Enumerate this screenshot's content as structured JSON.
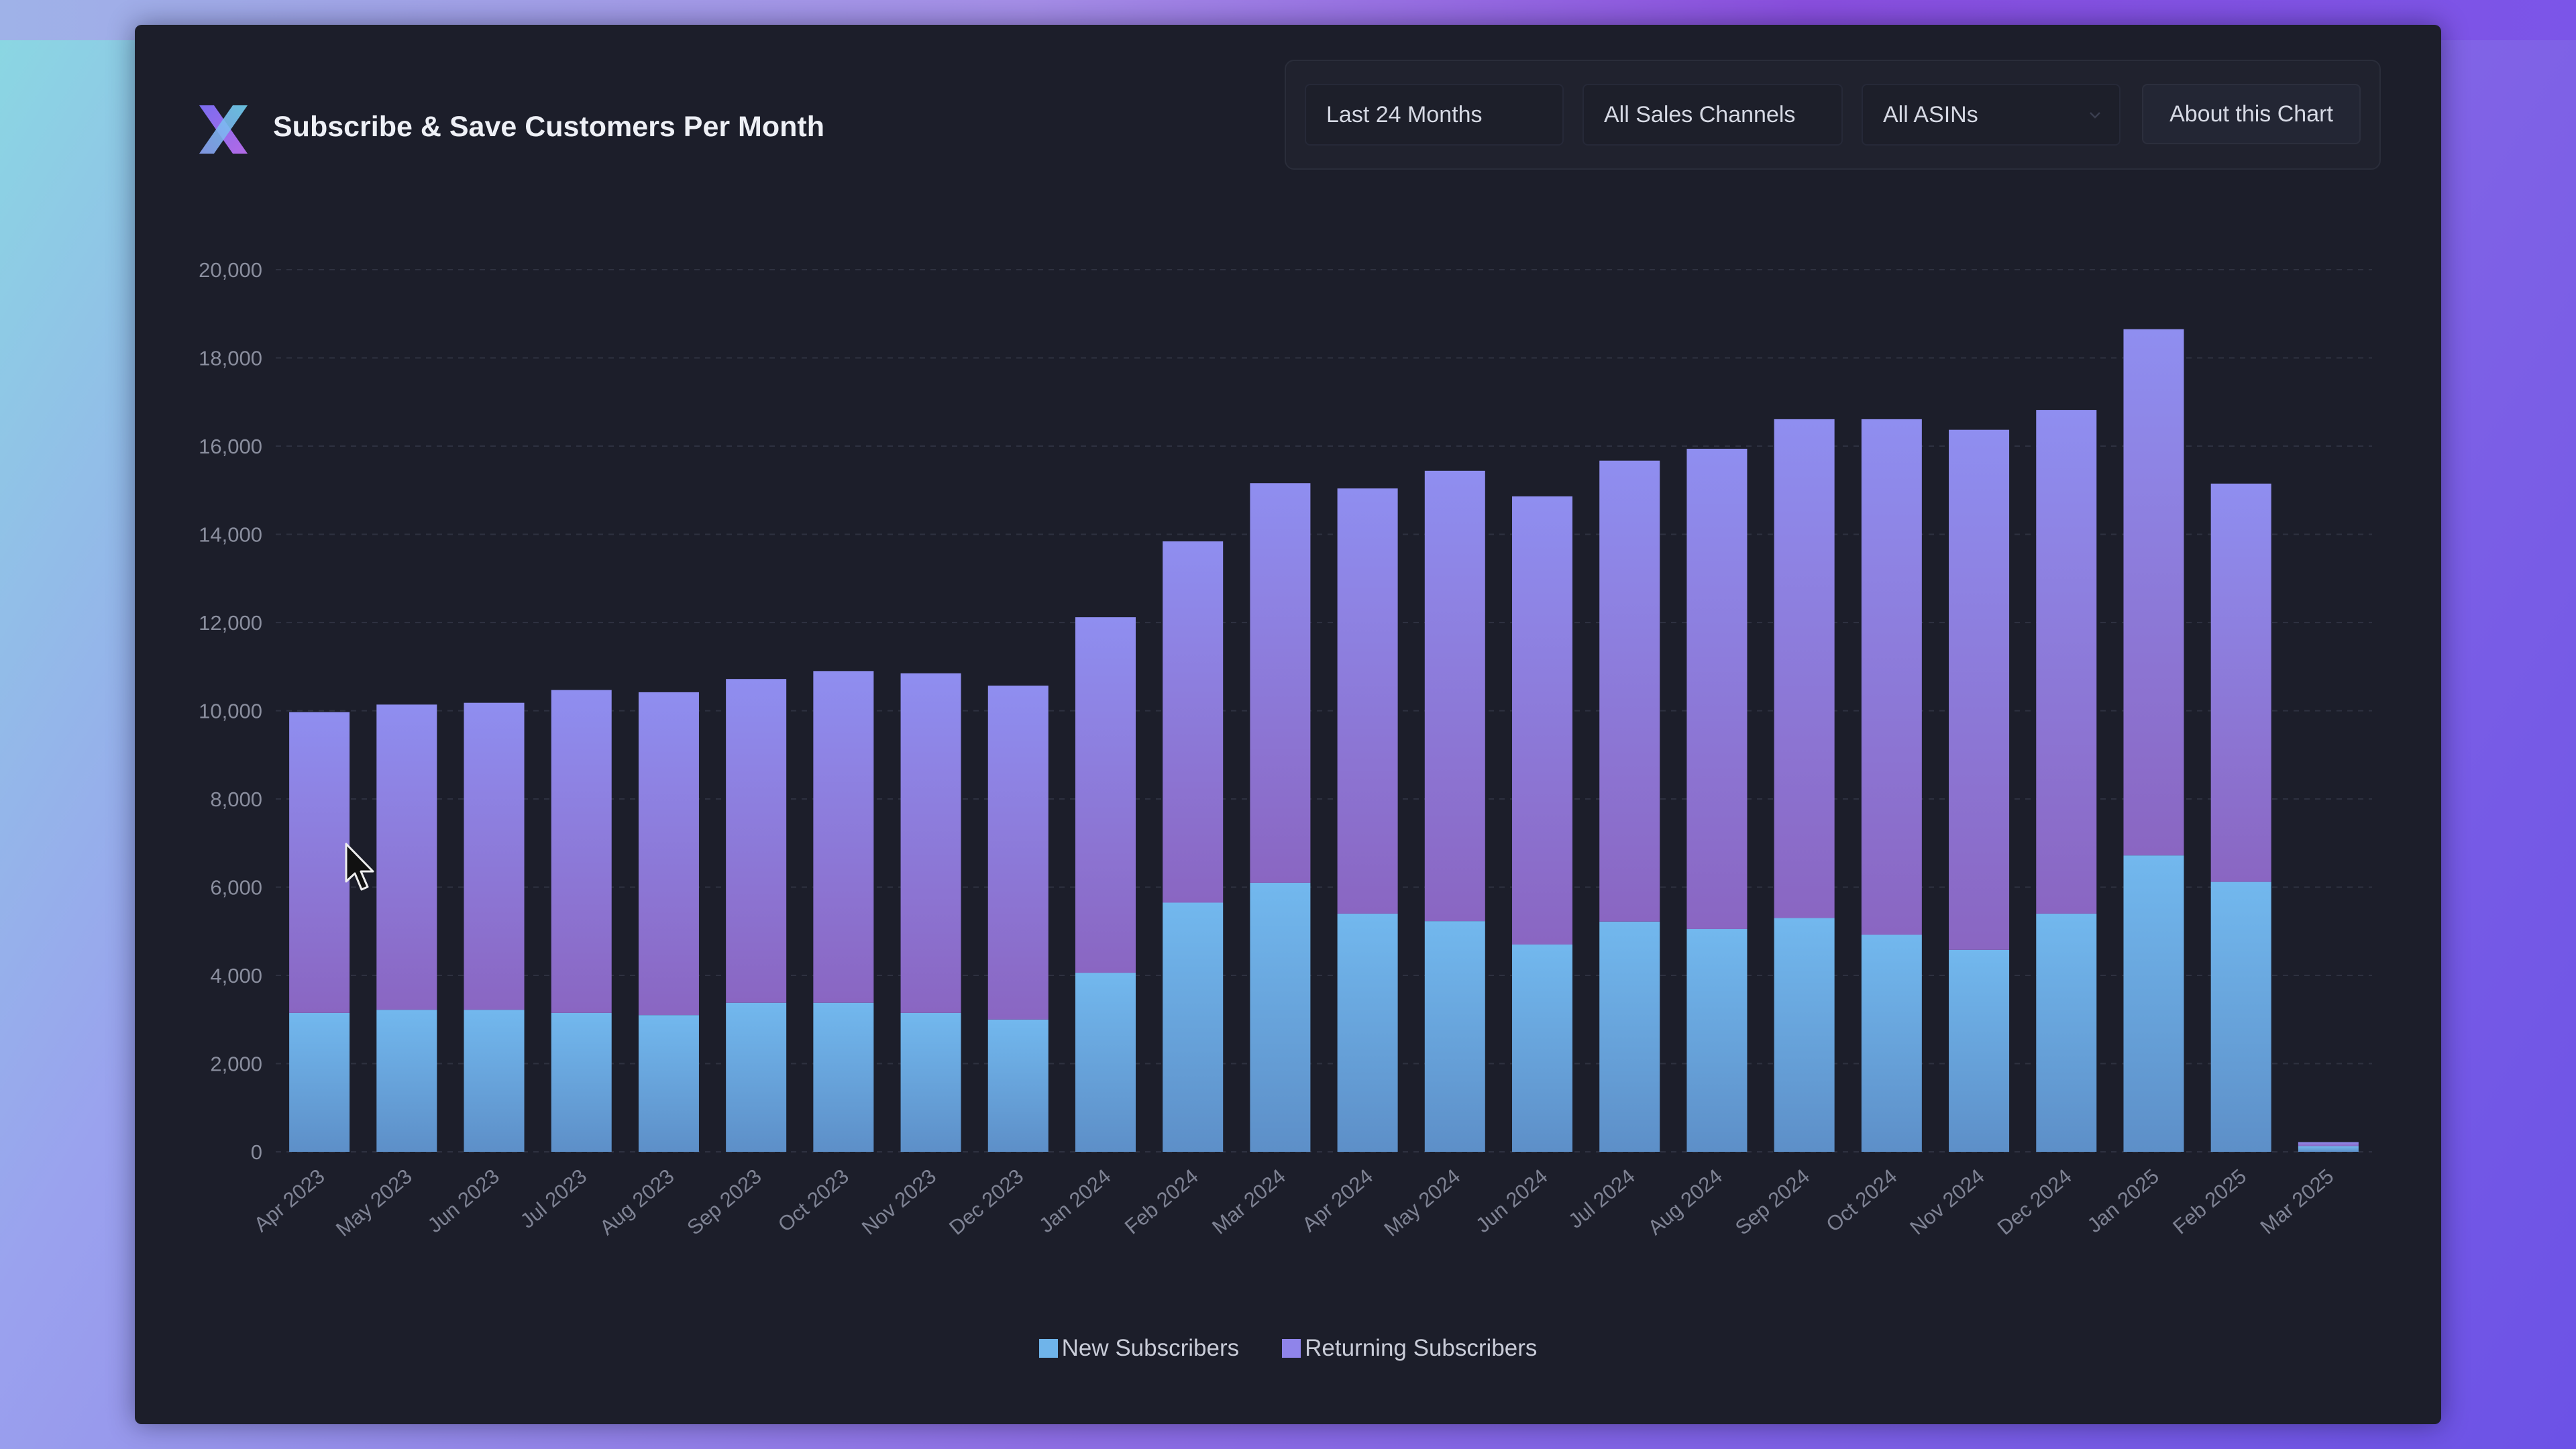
{
  "header": {
    "title": "Subscribe & Save Customers Per Month"
  },
  "filters": {
    "period": "Last 24 Months",
    "channels": "All Sales Channels",
    "asins": "All ASINs",
    "about_label": "About this Chart"
  },
  "icons": {
    "logo": "x-logo-icon",
    "caret": "chevron-down-icon",
    "cursor": "mouse-pointer-icon"
  },
  "colors": {
    "new_subscribers": "#6fb4ea",
    "returning_subscribers": "#8f84ea",
    "panel_bg": "#1c1e2a"
  },
  "chart_data": {
    "type": "bar",
    "stacked": true,
    "title": "Subscribe & Save Customers Per Month",
    "xlabel": "",
    "ylabel": "",
    "ylim": [
      0,
      20000
    ],
    "yticks": [
      0,
      2000,
      4000,
      6000,
      8000,
      10000,
      12000,
      14000,
      16000,
      18000,
      20000
    ],
    "ytick_labels": [
      "0",
      "2,000",
      "4,000",
      "6,000",
      "8,000",
      "10,000",
      "12,000",
      "14,000",
      "16,000",
      "18,000",
      "20,000"
    ],
    "grid": true,
    "legend_position": "bottom-center",
    "categories": [
      "Apr 2023",
      "May 2023",
      "Jun 2023",
      "Jul 2023",
      "Aug 2023",
      "Sep 2023",
      "Oct 2023",
      "Nov 2023",
      "Dec 2023",
      "Jan 2024",
      "Feb 2024",
      "Mar 2024",
      "Apr 2024",
      "May 2024",
      "Jun 2024",
      "Jul 2024",
      "Aug 2024",
      "Sep 2024",
      "Oct 2024",
      "Nov 2024",
      "Dec 2024",
      "Jan 2025",
      "Feb 2025",
      "Mar 2025"
    ],
    "series": [
      {
        "name": "New Subscribers",
        "values": [
          3150,
          3220,
          3220,
          3150,
          3100,
          3380,
          3380,
          3150,
          3000,
          4060,
          5650,
          6100,
          5400,
          5230,
          4700,
          5220,
          5050,
          5300,
          4920,
          4580,
          5400,
          6720,
          6120,
          130
        ]
      },
      {
        "name": "Returning Subscribers",
        "values": [
          6820,
          6920,
          6960,
          7320,
          7320,
          7340,
          7520,
          7700,
          7570,
          8060,
          8190,
          9060,
          9640,
          10210,
          10160,
          10450,
          10890,
          11310,
          11690,
          11790,
          11420,
          11930,
          9030,
          90
        ]
      }
    ]
  }
}
